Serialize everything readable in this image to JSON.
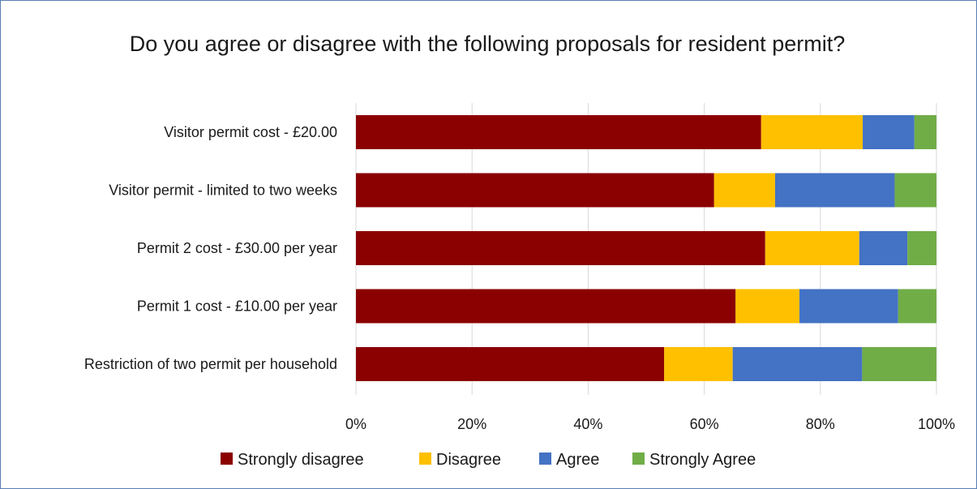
{
  "chart_data": {
    "type": "bar",
    "orientation": "horizontal",
    "stacking": "percent",
    "title": "Do you agree or disagree with the following proposals for resident permit?",
    "categories": [
      "Visitor permit cost - £20.00",
      "Visitor permit - limited to two weeks",
      "Permit 2 cost - £30.00 per year",
      "Permit 1 cost - £10.00 per year",
      "Restriction of two permit per household"
    ],
    "series": [
      {
        "name": "Strongly disagree",
        "color": "#8b0000",
        "values": [
          69.8,
          61.7,
          70.5,
          65.4,
          53.1
        ]
      },
      {
        "name": "Disagree",
        "color": "#ffc000",
        "values": [
          17.5,
          10.5,
          16.2,
          11.0,
          11.8
        ]
      },
      {
        "name": "Agree",
        "color": "#4472c4",
        "values": [
          8.9,
          20.6,
          8.3,
          17.0,
          22.3
        ]
      },
      {
        "name": "Strongly Agree",
        "color": "#70ad47",
        "values": [
          3.8,
          7.2,
          5.0,
          6.6,
          12.8
        ]
      }
    ],
    "x_ticks": [
      "0%",
      "20%",
      "40%",
      "60%",
      "80%",
      "100%"
    ],
    "xlim": [
      0,
      100
    ],
    "grid": true,
    "legend_position": "bottom"
  }
}
